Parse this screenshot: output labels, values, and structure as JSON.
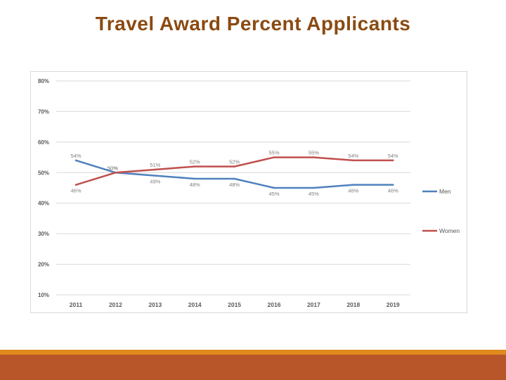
{
  "slide": {
    "title": "Travel Award Percent Applicants",
    "colors": {
      "title": "#8a4a12",
      "footer_light": "#e08a1e",
      "footer_dark": "#b8562a"
    }
  },
  "chart_data": {
    "type": "line",
    "categories": [
      "2011",
      "2012",
      "2013",
      "2014",
      "2015",
      "2016",
      "2017",
      "2018",
      "2019"
    ],
    "ylim": [
      10,
      80
    ],
    "yticks": [
      "10%",
      "20%",
      "30%",
      "40%",
      "50%",
      "60%",
      "70%",
      "80%"
    ],
    "grid": true,
    "legend_position": "right",
    "series": [
      {
        "name": "Men",
        "color": "#4f81bd",
        "values": [
          54,
          50,
          49,
          48,
          48,
          45,
          45,
          46,
          46
        ],
        "labels": [
          "54%",
          "50%",
          "49%",
          "48%",
          "48%",
          "45%",
          "45%",
          "46%",
          "46%"
        ]
      },
      {
        "name": "Women",
        "color": "#c0504d",
        "values": [
          46,
          50,
          51,
          52,
          52,
          55,
          55,
          54,
          54
        ],
        "labels": [
          "46%",
          "50%",
          "51%",
          "52%",
          "52%",
          "55%",
          "55%",
          "54%",
          "54%"
        ]
      }
    ]
  }
}
